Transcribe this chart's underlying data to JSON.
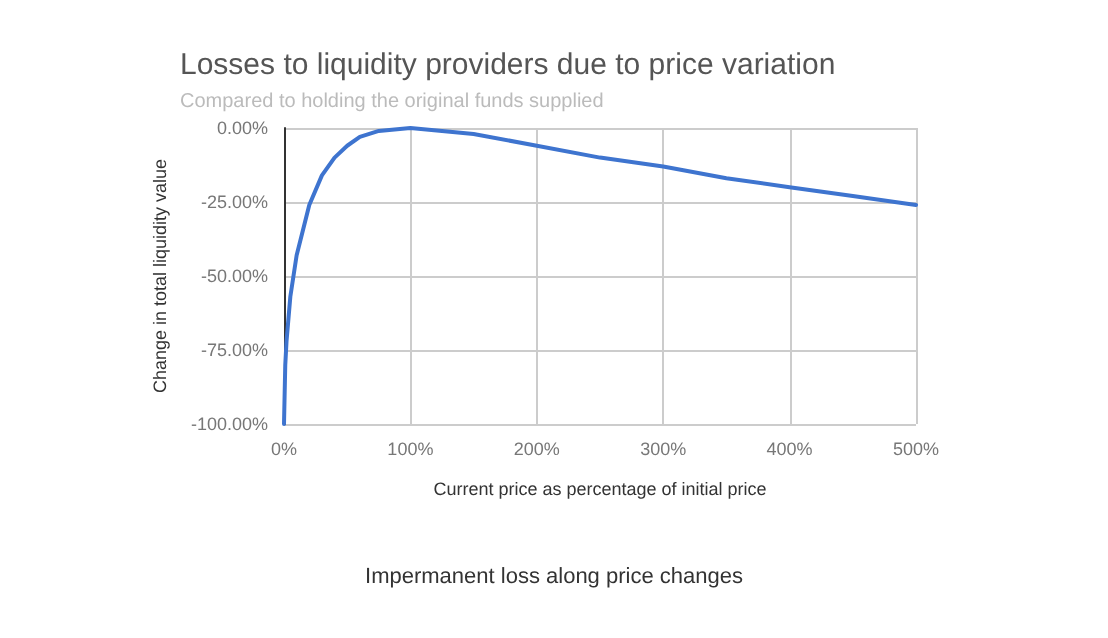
{
  "chart_data": {
    "type": "line",
    "title": "Losses to liquidity providers due to price variation",
    "subtitle": "Compared to holding the original funds supplied",
    "xlabel": "Current price as percentage of initial price",
    "ylabel": "Change in total liquidity value",
    "series": [
      {
        "color": "#3e74cf",
        "x": [
          0,
          1,
          2,
          5,
          10,
          20,
          30,
          40,
          50,
          60,
          75,
          100,
          125,
          150,
          200,
          250,
          300,
          350,
          400,
          450,
          500
        ],
        "values": [
          -100,
          -80,
          -72,
          -57,
          -43,
          -26,
          -16,
          -10,
          -6,
          -3,
          -1,
          0,
          -1,
          -2,
          -6,
          -10,
          -13,
          -17,
          -20,
          -23,
          -26
        ]
      }
    ],
    "xlim": [
      0,
      500
    ],
    "xticks": [
      {
        "value": 0,
        "label": "0%"
      },
      {
        "value": 100,
        "label": "100%"
      },
      {
        "value": 200,
        "label": "200%"
      },
      {
        "value": 300,
        "label": "300%"
      },
      {
        "value": 400,
        "label": "400%"
      },
      {
        "value": 500,
        "label": "500%"
      }
    ],
    "ylim": [
      -100,
      0
    ],
    "yticks": [
      {
        "value": -100,
        "label": "-100.00%"
      },
      {
        "value": -75,
        "label": "-75.00%"
      },
      {
        "value": -50,
        "label": "-50.00%"
      },
      {
        "value": -25,
        "label": "-25.00%"
      },
      {
        "value": 0,
        "label": "0.00%"
      }
    ],
    "grid": true,
    "marker": "none",
    "line_style": "solid",
    "annotations": [
      "Impermanent loss along price changes"
    ]
  }
}
